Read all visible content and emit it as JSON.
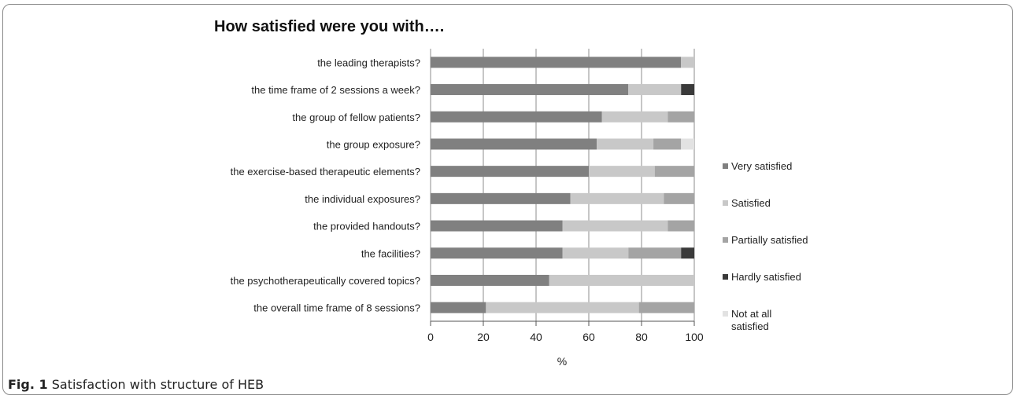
{
  "caption": {
    "label": "Fig. 1",
    "text": "Satisfaction with structure of HEB"
  },
  "chart_data": {
    "type": "bar",
    "orientation": "horizontal",
    "stacked": true,
    "title": "How satisfied were you with….",
    "xlabel": "%",
    "ylabel": "",
    "xlim": [
      0,
      100
    ],
    "xticks": [
      0,
      20,
      40,
      60,
      80,
      100
    ],
    "grid": true,
    "legend_position": "right",
    "categories": [
      "the leading therapists?",
      "the time frame of 2 sessions a week?",
      "the group of fellow patients?",
      "the group exposure?",
      "the exercise-based therapeutic elements?",
      "the individual exposures?",
      "the provided handouts?",
      "the facilities?",
      "the psychotherapeutically covered topics?",
      "the overall time frame of 8 sessions?"
    ],
    "series": [
      {
        "name": "Very satisfied",
        "color": "#808080",
        "values": [
          95,
          75,
          65,
          63,
          60,
          53,
          50,
          50,
          45,
          21
        ]
      },
      {
        "name": "Satisfied",
        "color": "#c8c8c8",
        "values": [
          5,
          20,
          25,
          21.5,
          25,
          35.5,
          40,
          25,
          55,
          58
        ]
      },
      {
        "name": "Partially satisfied",
        "color": "#a4a4a4",
        "values": [
          0,
          0,
          10,
          10.5,
          15,
          11.5,
          10,
          20,
          0,
          21
        ]
      },
      {
        "name": "Hardly satisfied",
        "color": "#3a3a3a",
        "values": [
          0,
          5,
          0,
          0,
          0,
          0,
          0,
          5,
          0,
          0
        ]
      },
      {
        "name": "Not at all satisfied",
        "color": "#e2e2e2",
        "values": [
          0,
          0,
          0,
          5,
          0,
          0,
          0,
          0,
          0,
          0
        ]
      }
    ]
  }
}
